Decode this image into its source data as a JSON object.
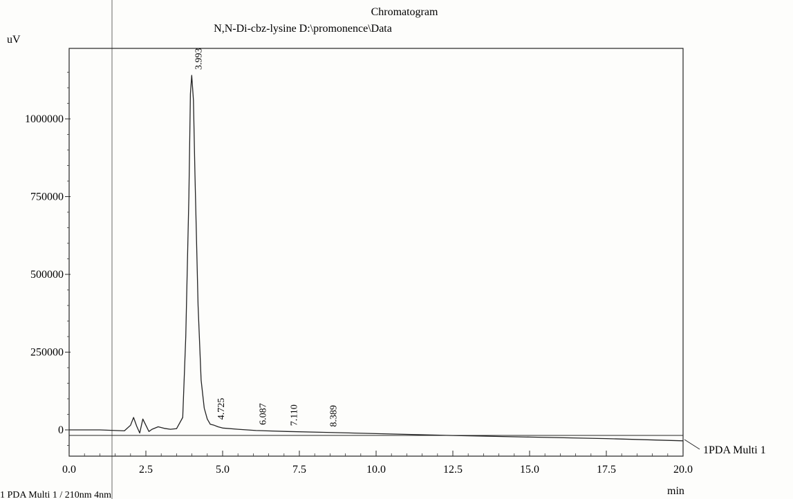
{
  "chart_data": {
    "type": "line",
    "title": "Chromatogram",
    "subtitle": "N,N-Di-cbz-lysine D:\\promonence\\Data",
    "ylabel": "uV",
    "xlabel": "min",
    "xlim": [
      0,
      20
    ],
    "ylim": [
      -70000,
      1200000
    ],
    "x_ticks": [
      0.0,
      2.5,
      5.0,
      7.5,
      10.0,
      12.5,
      15.0,
      17.5,
      20.0
    ],
    "x_tick_labels": [
      "0.0",
      "2.5",
      "5.0",
      "7.5",
      "10.0",
      "12.5",
      "15.0",
      "17.5",
      "20.0"
    ],
    "y_ticks": [
      0,
      250000,
      500000,
      750000,
      1000000
    ],
    "y_tick_labels": [
      "0",
      "250000",
      "500000",
      "750000",
      "1000000"
    ],
    "grid": false,
    "series": [
      {
        "name": "1PDA Multi 1",
        "x": [
          0.0,
          1.0,
          1.8,
          2.0,
          2.1,
          2.2,
          2.3,
          2.4,
          2.5,
          2.6,
          2.7,
          2.9,
          3.1,
          3.3,
          3.5,
          3.7,
          3.8,
          3.9,
          3.95,
          3.993,
          4.05,
          4.1,
          4.2,
          4.3,
          4.4,
          4.5,
          4.6,
          4.725,
          4.85,
          5.0,
          5.5,
          6.087,
          7.11,
          8.389,
          10.0,
          12.5,
          15.0,
          17.5,
          20.0
        ],
        "y": [
          0,
          0,
          -3000,
          15000,
          40000,
          12000,
          -10000,
          35000,
          15000,
          -5000,
          2000,
          10000,
          5000,
          2000,
          4000,
          40000,
          300000,
          750000,
          1080000,
          1140000,
          1060000,
          820000,
          400000,
          160000,
          70000,
          35000,
          18000,
          15000,
          10000,
          6000,
          2000,
          -2000,
          -5000,
          -8000,
          -12000,
          -18000,
          -23000,
          -28000,
          -35000
        ]
      }
    ],
    "peak_labels": [
      {
        "x": 3.993,
        "y": 1140000,
        "label": "3.993"
      },
      {
        "x": 4.725,
        "y": 15000,
        "label": "4.725"
      },
      {
        "x": 6.087,
        "y": -2000,
        "label": "6.087"
      },
      {
        "x": 7.11,
        "y": -5000,
        "label": "7.110"
      },
      {
        "x": 8.389,
        "y": -8000,
        "label": "8.389"
      }
    ],
    "legend": "1PDA Multi 1",
    "footer": "1 PDA Multi 1 / 210nm 4nm"
  }
}
